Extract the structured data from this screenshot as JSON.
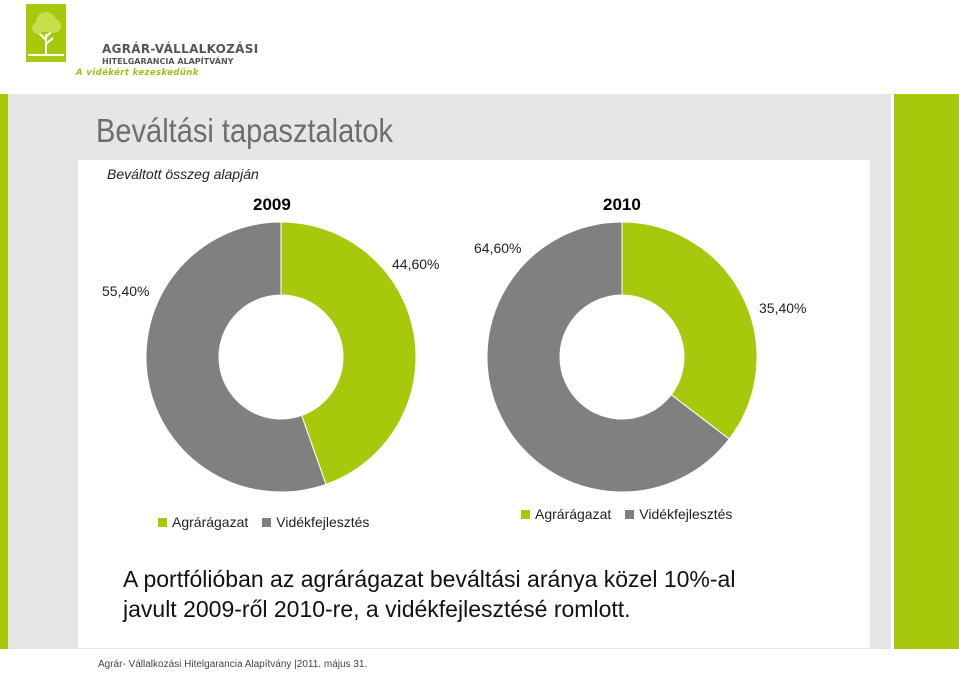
{
  "logo": {
    "title": "AGRÁR-VÁLLALKOZÁSI",
    "subtitle": "HITELGARANCIA ALAPÍTVÁNY",
    "tagline": "A vidékért kezeskedünk"
  },
  "slide": {
    "title": "Beváltási tapasztalatok",
    "subtitle": "Beváltott összeg alapján",
    "summary_line1": "A portfólióban az agrárágazat beváltási aránya közel 10%-al",
    "summary_line2": "javult 2009-ről 2010-re, a vidékfejlesztésé romlott.",
    "footer": "Agrár- Vállalkozási Hitelgarancia Alapítvány |2011. május 31."
  },
  "colors": {
    "agrar": "#a7c90c",
    "videk": "#808080",
    "accent": "#a7c90c",
    "panel": "#e6e6e6"
  },
  "chart_data": [
    {
      "type": "pie",
      "title": "2009",
      "categories": [
        "Agrárágazat",
        "Vidékfejlesztés"
      ],
      "values": [
        44.6,
        55.4
      ],
      "value_labels": [
        "44,60%",
        "55,40%"
      ],
      "legend": "bottom"
    },
    {
      "type": "pie",
      "title": "2010",
      "categories": [
        "Agrárágazat",
        "Vidékfejlesztés"
      ],
      "values": [
        35.4,
        64.6
      ],
      "value_labels": [
        "35,40%",
        "64,60%"
      ],
      "legend": "bottom"
    }
  ]
}
